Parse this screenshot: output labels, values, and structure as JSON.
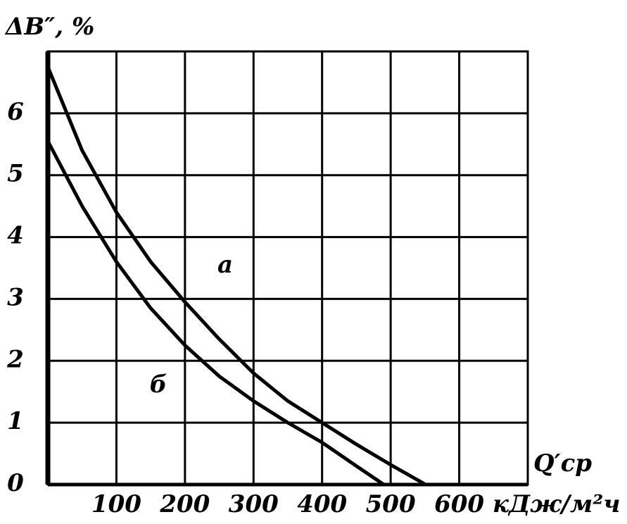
{
  "chart_data": {
    "type": "line",
    "y_label": "ΔB″, %",
    "x_label": "Q′ср",
    "x_unit": "кДж/м²ч",
    "xlim": [
      0,
      700
    ],
    "ylim": [
      0,
      7
    ],
    "xticks": [
      100,
      200,
      300,
      400,
      500,
      600
    ],
    "yticks": [
      0,
      1,
      2,
      3,
      4,
      5,
      6
    ],
    "grid": true,
    "series": [
      {
        "name": "а",
        "color": "#000000",
        "x": [
          0,
          50,
          100,
          150,
          200,
          250,
          300,
          350,
          400,
          450,
          500,
          551
        ],
        "values": [
          6.75,
          5.4,
          4.4,
          3.6,
          2.95,
          2.35,
          1.8,
          1.35,
          1.0,
          0.65,
          0.32,
          0
        ]
      },
      {
        "name": "б",
        "color": "#000000",
        "x": [
          0,
          50,
          100,
          150,
          200,
          250,
          300,
          350,
          400,
          450,
          490
        ],
        "values": [
          5.55,
          4.5,
          3.6,
          2.85,
          2.25,
          1.75,
          1.35,
          1.0,
          0.68,
          0.3,
          0
        ]
      }
    ]
  }
}
